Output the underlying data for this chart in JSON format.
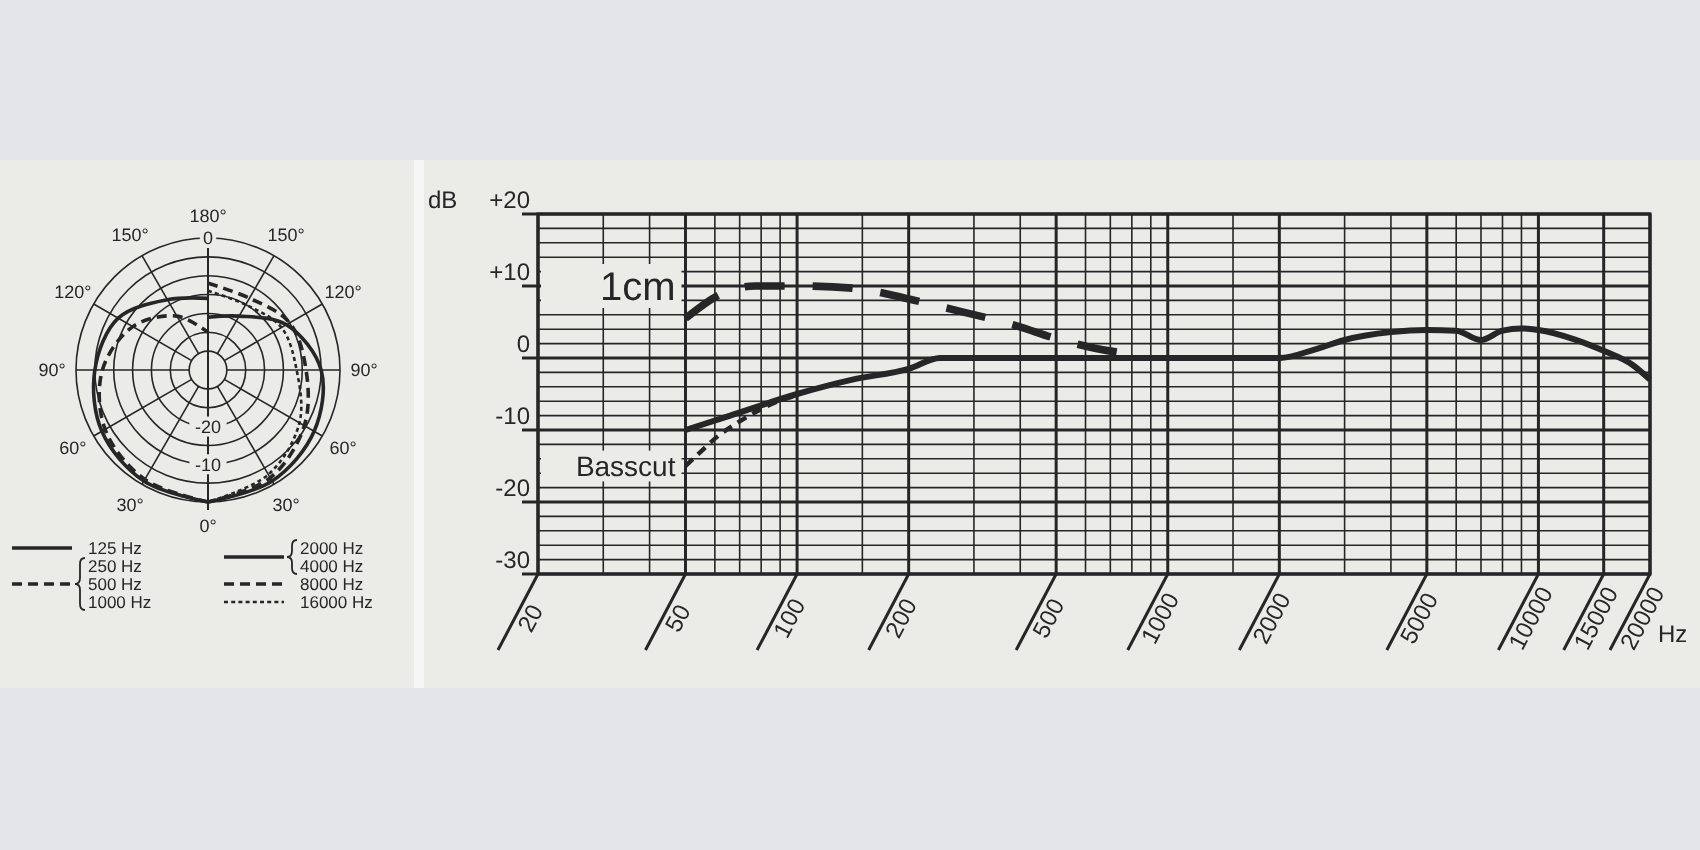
{
  "chart_data": [
    {
      "type": "radar",
      "categories": [
        "180°",
        "150°",
        "120°",
        "90°",
        "60°",
        "30°",
        "0°",
        "30°",
        "60°",
        "90°",
        "120°",
        "150°"
      ],
      "ylim": [
        -35,
        0
      ],
      "yticks": [
        -20,
        -10,
        0
      ],
      "grid": true,
      "legend": "bottom",
      "series": [
        {
          "name": "125 Hz",
          "color": "#262626",
          "line_style": "solid",
          "values": [
            -16,
            null,
            null,
            null,
            null,
            null,
            0,
            -1,
            -2.5,
            -5,
            -7.5,
            -13.5
          ]
        },
        {
          "name": "250 Hz\n500 Hz\n1000 Hz",
          "color": "#262626",
          "line_style": "dashed",
          "values": [
            -25,
            null,
            null,
            null,
            null,
            null,
            0,
            -1.5,
            -3.5,
            -7,
            -12,
            -18.5
          ]
        },
        {
          "name": "2000 Hz\n4000 Hz",
          "color": "#262626",
          "line_style": "solid",
          "values": [
            -21,
            -18.5,
            -11,
            -5,
            -2.5,
            -1,
            0,
            null,
            null,
            null,
            null,
            null
          ]
        },
        {
          "name": "8000 Hz",
          "color": "#262626",
          "line_style": "dashed",
          "values": [
            -12,
            -13,
            -10,
            -9,
            -5.5,
            -2,
            0,
            null,
            null,
            null,
            null,
            null
          ]
        },
        {
          "name": "16000 Hz",
          "color": "#262626",
          "line_style": "dotted",
          "values": [
            -14,
            -15,
            -12.5,
            -11.5,
            -7,
            -3,
            0,
            null,
            null,
            null,
            null,
            null
          ]
        }
      ]
    },
    {
      "type": "line",
      "xlabel": "Hz",
      "ylabel": "dB",
      "log": "x",
      "grid": true,
      "xlim": [
        20,
        20000
      ],
      "ylim": [
        -30,
        20
      ],
      "xticks": [
        20,
        {
          "value": 30,
          "label": null
        },
        {
          "value": 40,
          "label": null
        },
        50,
        {
          "value": 60,
          "label": null
        },
        {
          "value": 70,
          "label": null
        },
        {
          "value": 80,
          "label": null
        },
        {
          "value": 90,
          "label": null
        },
        100,
        {
          "value": 150,
          "label": null
        },
        200,
        {
          "value": 300,
          "label": null
        },
        {
          "value": 400,
          "label": null
        },
        500,
        {
          "value": 600,
          "label": null
        },
        {
          "value": 700,
          "label": null
        },
        {
          "value": 800,
          "label": null
        },
        {
          "value": 900,
          "label": null
        },
        1000,
        {
          "value": 1500,
          "label": null
        },
        2000,
        {
          "value": 3000,
          "label": null
        },
        {
          "value": 4000,
          "label": null
        },
        5000,
        {
          "value": 6000,
          "label": null
        },
        {
          "value": 7000,
          "label": null
        },
        {
          "value": 8000,
          "label": null
        },
        {
          "value": 9000,
          "label": null
        },
        10000,
        15000,
        20000
      ],
      "yticks": [
        -30,
        {
          "value": -28,
          "label": null
        },
        {
          "value": -26,
          "label": null
        },
        {
          "value": -24,
          "label": null
        },
        {
          "value": -22,
          "label": null
        },
        -20,
        {
          "value": -18,
          "label": null
        },
        {
          "value": -16,
          "label": null
        },
        {
          "value": -14,
          "label": null
        },
        {
          "value": -12,
          "label": null
        },
        -10,
        {
          "value": -8,
          "label": null
        },
        {
          "value": -6,
          "label": null
        },
        {
          "value": -4,
          "label": null
        },
        {
          "value": -2,
          "label": null
        },
        0,
        {
          "value": 2,
          "label": null
        },
        {
          "value": 4,
          "label": null
        },
        {
          "value": 6,
          "label": null
        },
        {
          "value": 8,
          "label": null
        },
        {
          "value": 10,
          "label": "+10"
        },
        {
          "value": 12,
          "label": null
        },
        {
          "value": 14,
          "label": null
        },
        {
          "value": 16,
          "label": null
        },
        {
          "value": 18,
          "label": null
        },
        {
          "value": 20,
          "label": "+20"
        }
      ],
      "series": [
        {
          "color": "#262626",
          "line_style": "solid",
          "x": [
            50,
            66,
            100,
            141,
            200,
            243,
            500,
            1000,
            2000,
            2500,
            3000,
            4000,
            5000,
            6000,
            7000,
            8000,
            9000,
            10000,
            12500,
            15000,
            18000,
            20000
          ],
          "values": [
            -10,
            -8,
            -5,
            -3,
            -1.5,
            0,
            0,
            0,
            0,
            1.2,
            2.5,
            3.6,
            3.9,
            3.8,
            2.5,
            3.8,
            4.1,
            3.9,
            2.6,
            1,
            -1,
            -3
          ]
        },
        {
          "name": "1cm",
          "color": "#262626",
          "line_style": "dashed",
          "x": [
            50,
            63,
            77,
            100,
            141,
            196,
            250,
            395,
            500,
            618,
            800
          ],
          "values": [
            5.5,
            9,
            10,
            10,
            9.7,
            8.3,
            7,
            4.4,
            2.7,
            1.5,
            0.5
          ]
        },
        {
          "name": "Basscut",
          "color": "#262626",
          "line_style": "dotted",
          "x": [
            50,
            55,
            60,
            70,
            80,
            90,
            100
          ],
          "values": [
            -15,
            -13,
            -11.2,
            -8.8,
            -7.1,
            -5.9,
            -5.2
          ]
        }
      ]
    }
  ]
}
